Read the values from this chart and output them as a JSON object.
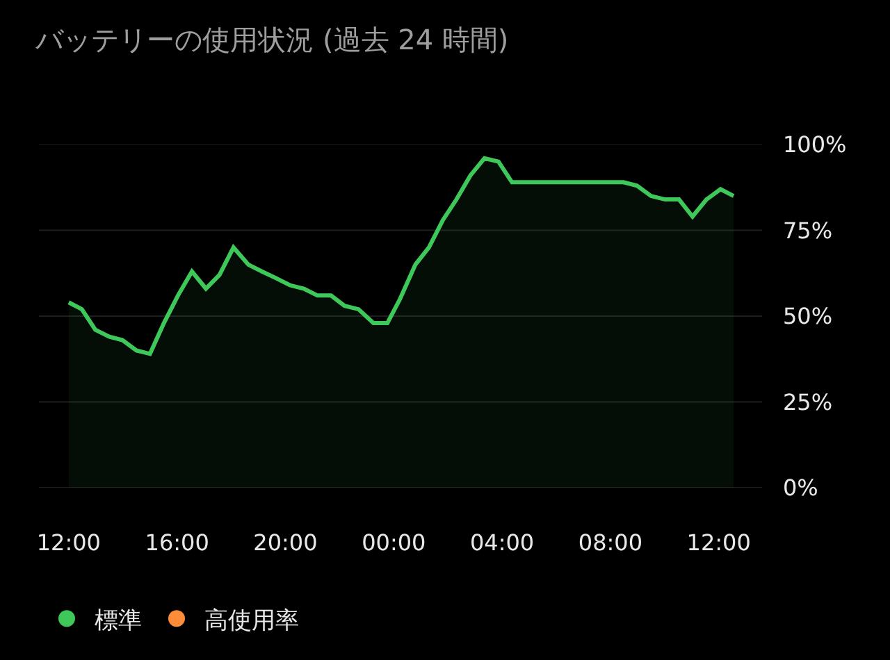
{
  "chart_data": {
    "type": "area",
    "title": "バッテリーの使用状況 (過去 24 時間)",
    "x": [
      "--01-01T12:00",
      "--01-01T12:29",
      "--01-01T12:59",
      "--01-01T13:30",
      "--01-01T13:59",
      "--01-01T14:30",
      "--01-01T15:00",
      "--01-01T15:31",
      "--01-01T16:02",
      "--01-01T16:33",
      "--01-01T17:04",
      "--01-01T17:34",
      "--01-01T18:05",
      "--01-01T18:38",
      "--01-01T19:08",
      "--01-01T19:40",
      "--01-01T20:10",
      "--01-01T20:41",
      "--01-01T21:11",
      "--01-01T21:41",
      "--01-01T22:11",
      "--01-01T22:42",
      "--01-01T23:15",
      "--01-01T23:46",
      "--01-02T00:14",
      "--01-02T00:48",
      "--01-02T01:18",
      "--01-02T01:49",
      "--01-02T02:19",
      "--01-02T02:50",
      "--01-02T03:21",
      "--01-02T03:52",
      "--01-02T04:22",
      "--01-02T08:29",
      "--01-02T08:59",
      "--01-02T09:30",
      "--01-02T10:01",
      "--01-02T10:32",
      "--01-02T11:02",
      "--01-02T11:33",
      "--01-02T12:04",
      "--01-02T12:33"
    ],
    "series": [
      {
        "name": "標準",
        "color": "#3ec85a",
        "values": [
          54,
          52,
          46,
          44,
          43,
          40,
          39,
          48,
          56,
          63,
          58,
          62,
          70,
          65,
          63,
          61,
          59,
          58,
          56,
          56,
          53,
          52,
          48,
          48,
          55,
          65,
          70,
          78,
          84,
          91,
          96,
          95,
          89,
          89,
          88,
          85,
          84,
          84,
          79,
          84,
          87,
          85
        ]
      },
      {
        "name": "高使用率",
        "color": "#ff8c38",
        "values": [
          null,
          null,
          null,
          null,
          null,
          null,
          null,
          null,
          null,
          null,
          null,
          null,
          null,
          null,
          null,
          null,
          null,
          null,
          null,
          null,
          null,
          null,
          null,
          null,
          null,
          null,
          null,
          null,
          null,
          null,
          null,
          null,
          null,
          null,
          null,
          null,
          null,
          null,
          null,
          null,
          null,
          null
        ]
      }
    ],
    "xlim": [
      "--01-01T10:54",
      "--01-02T13:36"
    ],
    "xticks": [
      {
        "value": "--01-01T12:00",
        "label": "12:00"
      },
      {
        "value": "--01-01T16:00",
        "label": "16:00"
      },
      {
        "value": "--01-01T20:00",
        "label": "20:00"
      },
      {
        "value": "--01-02T00:00",
        "label": "00:00"
      },
      {
        "value": "--01-02T04:00",
        "label": "04:00"
      },
      {
        "value": "--01-02T08:00",
        "label": "08:00"
      },
      {
        "value": "--01-02T12:00",
        "label": "12:00"
      }
    ],
    "ylim": [
      0,
      100
    ],
    "yticks": [
      {
        "value": 0,
        "label": "0%"
      },
      {
        "value": 25,
        "label": "25%"
      },
      {
        "value": 50,
        "label": "50%"
      },
      {
        "value": 75,
        "label": "75%"
      },
      {
        "value": 100,
        "label": "100%"
      }
    ],
    "grid": "y",
    "legend": "bottom left",
    "line_style": "solid"
  }
}
